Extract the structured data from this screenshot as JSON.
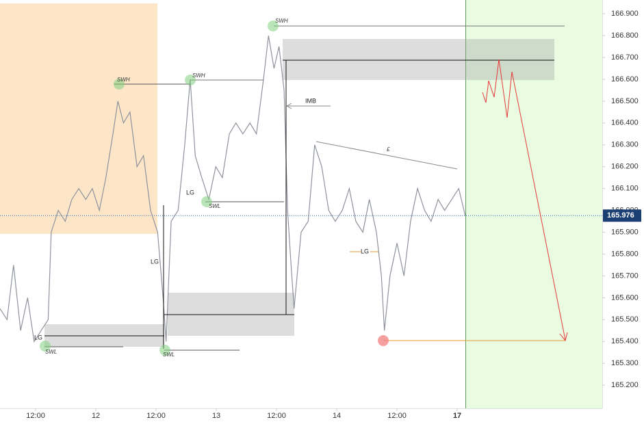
{
  "chart_data": {
    "type": "line",
    "x": [
      -19.1,
      -17.7,
      -16.4,
      -15.0,
      -13.6,
      -12.3,
      -10.9,
      -9.5,
      -8.9,
      -7.5,
      -6.1,
      -4.8,
      -3.4,
      -2.0,
      -0.7,
      0.7,
      2.0,
      3.4,
      4.4,
      5.5,
      6.8,
      8.2,
      9.5,
      10.9,
      12.3,
      13.4,
      14.0,
      15.0,
      16.4,
      17.7,
      18.8,
      19.8,
      21.1,
      22.5,
      23.9,
      25.2,
      26.6,
      27.9,
      29.3,
      30.7,
      32.0,
      33.4,
      34.4,
      35.5,
      36.5,
      37.5,
      38.2,
      38.9,
      39.5,
      40.9,
      42.3,
      43.6,
      45.0,
      46.4,
      47.7,
      49.1,
      50.5,
      51.8,
      53.2,
      54.5,
      55.9,
      56.9,
      57.5,
      58.6,
      60.0,
      61.4,
      62.7,
      64.1,
      65.5,
      66.8,
      68.2,
      69.5,
      70.9,
      72.3,
      73.6
    ],
    "series": [
      {
        "color": "#8e929c",
        "values": [
          165.55,
          165.5,
          165.75,
          165.45,
          165.6,
          165.4,
          165.45,
          165.5,
          165.9,
          166.0,
          165.95,
          166.05,
          166.1,
          166.05,
          166.1,
          166.0,
          166.15,
          166.35,
          166.5,
          166.4,
          166.45,
          166.2,
          166.25,
          166.0,
          165.9,
          165.6,
          165.4,
          165.95,
          166.0,
          166.3,
          166.6,
          166.25,
          166.15,
          166.05,
          166.2,
          166.15,
          166.35,
          166.4,
          166.35,
          166.4,
          166.35,
          166.6,
          166.8,
          166.65,
          166.75,
          166.55,
          166.0,
          165.75,
          165.55,
          165.9,
          165.95,
          166.3,
          166.2,
          166.0,
          165.95,
          166.0,
          166.1,
          165.95,
          165.9,
          166.05,
          165.9,
          165.7,
          165.45,
          165.7,
          165.85,
          165.7,
          165.95,
          166.1,
          166.0,
          165.95,
          166.05,
          166.0,
          166.05,
          166.1,
          165.976
        ]
      }
    ],
    "xlim": [
      -19.1,
      100.9
    ],
    "xticks": [
      {
        "value": -12,
        "label": "12:00"
      },
      {
        "value": 0,
        "label": "12"
      },
      {
        "value": 12,
        "label": "12:00"
      },
      {
        "value": 24,
        "label": "13"
      },
      {
        "value": 36,
        "label": "12:00"
      },
      {
        "value": 48,
        "label": "14"
      },
      {
        "value": 60,
        "label": "12:00"
      },
      {
        "value": 72,
        "label": "17"
      }
    ],
    "ylim": [
      165.094,
      166.963
    ],
    "yticks": [
      {
        "value": 165.2,
        "label": "165.200"
      },
      {
        "value": 165.3,
        "label": "165.300"
      },
      {
        "value": 165.4,
        "label": "165.400"
      },
      {
        "value": 165.5,
        "label": "165.500"
      },
      {
        "value": 165.6,
        "label": "165.600"
      },
      {
        "value": 165.7,
        "label": "165.700"
      },
      {
        "value": 165.8,
        "label": "165.800"
      },
      {
        "value": 165.9,
        "label": "165.900"
      },
      {
        "value": 166.0,
        "label": "166.000"
      },
      {
        "value": 166.1,
        "label": "166.100"
      },
      {
        "value": 166.2,
        "label": "166.200"
      },
      {
        "value": 166.3,
        "label": "166.300"
      },
      {
        "value": 166.4,
        "label": "166.400"
      },
      {
        "value": 166.5,
        "label": "166.500"
      },
      {
        "value": 166.6,
        "label": "166.600"
      },
      {
        "value": 166.7,
        "label": "166.700"
      },
      {
        "value": 166.8,
        "label": "166.800"
      },
      {
        "value": 166.9,
        "label": "166.900"
      }
    ],
    "last_price": {
      "value": 165.976,
      "label": "165.976"
    },
    "annotations": [
      "SWH",
      "SWH",
      "SWH",
      "SWL",
      "SWL",
      "SWL",
      "LG",
      "LG",
      "LG",
      "LG",
      "IMB",
      "£"
    ]
  }
}
